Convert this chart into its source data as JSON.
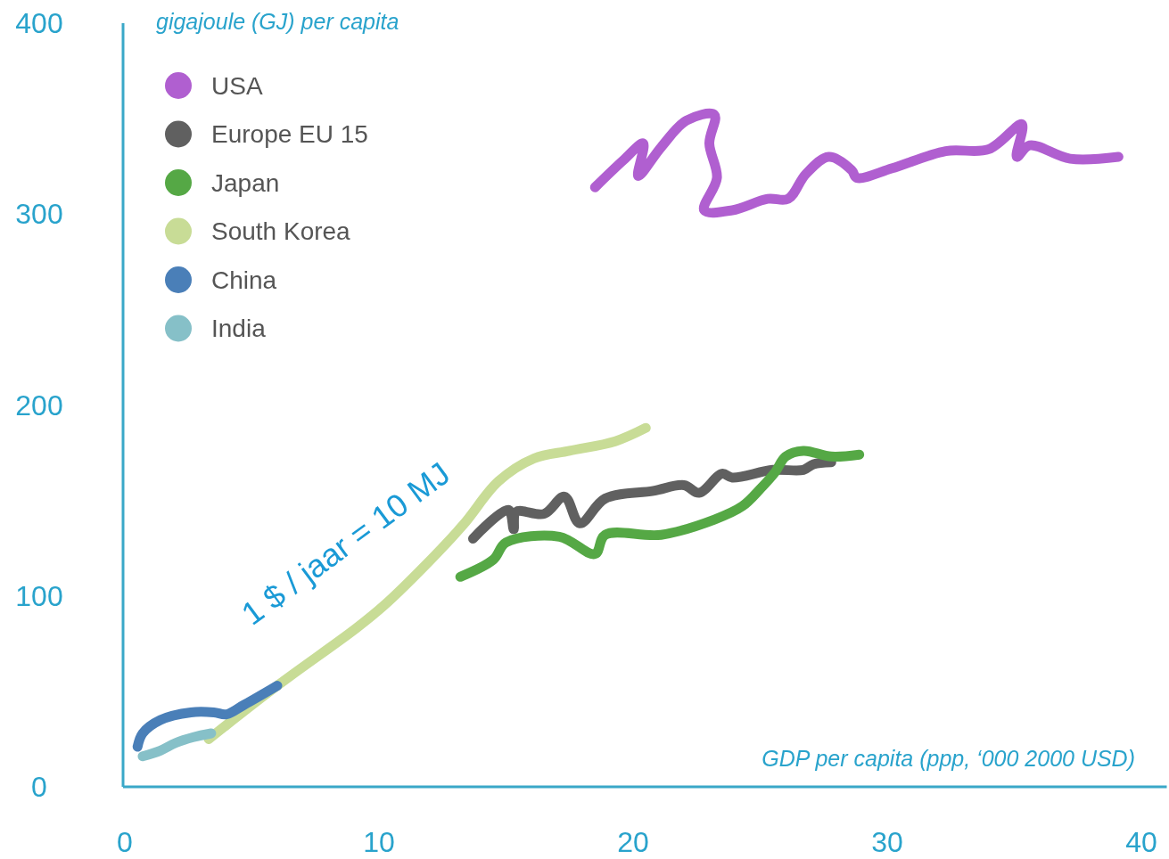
{
  "chart_data": {
    "type": "line",
    "xlabel": "GDP per capita (ppp, ‘000 2000 USD)",
    "ylabel": "gigajoule (GJ) per capita",
    "xlim": [
      0,
      41
    ],
    "ylim": [
      0,
      400
    ],
    "xticks": [
      0,
      10,
      20,
      30,
      40
    ],
    "yticks": [
      0,
      100,
      200,
      300,
      400
    ],
    "grid": false,
    "legend": "top left",
    "marker": "none",
    "line_style": "solid",
    "annotations": [
      "1 $ / jaar = 10 MJ"
    ],
    "series": [
      {
        "name": "USA",
        "color": "#b05fd0",
        "x": [
          18.5,
          19.6,
          20.4,
          20.2,
          21.1,
          22.1,
          23.2,
          23.0,
          23.3,
          22.8,
          23.9,
          25.3,
          26.1,
          26.8,
          27.7,
          28.6,
          28.8,
          30.2,
          32.3,
          34.0,
          35.3,
          35.1,
          35.6,
          37.2,
          39.1
        ],
        "values": [
          314,
          328,
          337,
          320,
          335,
          349,
          352,
          337,
          319,
          302,
          302,
          308,
          308,
          321,
          330,
          323,
          319,
          324,
          333,
          334,
          347,
          330,
          336,
          329,
          330
        ]
      },
      {
        "name": "Europe EU 15",
        "color": "#606060",
        "x": [
          13.7,
          15.1,
          15.3,
          15.4,
          16.5,
          17.3,
          17.9,
          18.9,
          20.8,
          22.0,
          22.6,
          23.5,
          23.9,
          25.5,
          26.7,
          27.1,
          27.8
        ],
        "values": [
          130,
          145,
          135,
          144,
          143,
          152,
          138,
          151,
          155,
          158,
          154,
          164,
          162,
          166,
          166,
          169,
          170
        ]
      },
      {
        "name": "Japan",
        "color": "#55a845",
        "x": [
          13.2,
          14.5,
          15.0,
          17.1,
          18.5,
          18.9,
          21.1,
          23.2,
          24.3,
          25.0,
          25.6,
          26.0,
          26.7,
          27.8,
          28.9
        ],
        "values": [
          110,
          119,
          128,
          131,
          122,
          132,
          132,
          140,
          147,
          156,
          165,
          173,
          176,
          173,
          174
        ]
      },
      {
        "name": "South Korea",
        "color": "#c8dc96",
        "x": [
          3.3,
          6.0,
          9.1,
          10.2,
          11.6,
          13.3,
          14.7,
          16.1,
          17.5,
          19.3,
          20.5
        ],
        "values": [
          25,
          53,
          83,
          95,
          113,
          137,
          160,
          172,
          176,
          181,
          188
        ]
      },
      {
        "name": "China",
        "color": "#4a7fb8",
        "x": [
          0.5,
          0.7,
          1.4,
          2.6,
          3.5,
          4.0,
          4.7,
          6.0
        ],
        "values": [
          21,
          28,
          35,
          39,
          39,
          38,
          43,
          53
        ]
      },
      {
        "name": "India",
        "color": "#86c0c8",
        "x": [
          0.7,
          1.4,
          2.0,
          2.7,
          3.4
        ],
        "values": [
          16,
          19,
          23,
          26,
          28
        ]
      }
    ]
  }
}
